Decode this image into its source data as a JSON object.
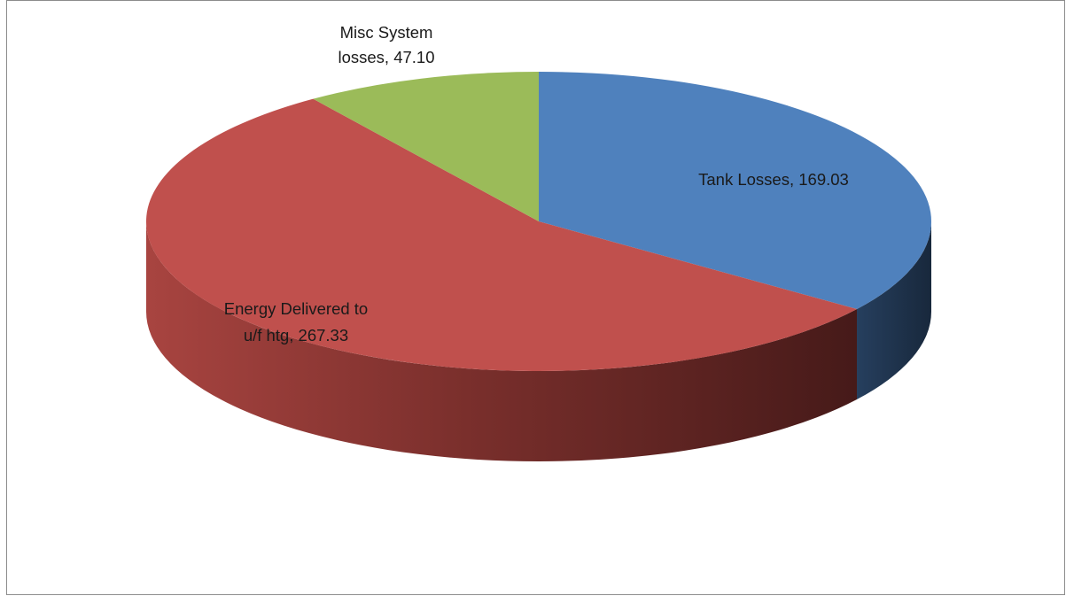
{
  "chart_data": {
    "type": "pie",
    "style": "3d",
    "title": "",
    "categories": [
      "Tank Losses",
      "Energy Delivered to u/f htg",
      "Misc System losses"
    ],
    "values": [
      169.03,
      267.33,
      47.1
    ],
    "colors": {
      "Tank Losses": "#4F81BD",
      "Energy Delivered to u/f htg": "#C0504D",
      "Misc System losses": "#9BBB59"
    },
    "side_colors": {
      "Tank Losses": "#1F3550",
      "Energy Delivered to u/f htg": "#8B3532",
      "Misc System losses": "#5E7A30"
    },
    "data_labels": [
      {
        "series": "Tank Losses",
        "lines": [
          "Tank Losses, 169.03"
        ]
      },
      {
        "series": "Energy Delivered to u/f htg",
        "lines": [
          "Energy Delivered to",
          "u/f htg, 267.33"
        ]
      },
      {
        "series": "Misc System losses",
        "lines": [
          "Misc System",
          "losses, 47.10"
        ]
      }
    ],
    "legend": "none"
  }
}
